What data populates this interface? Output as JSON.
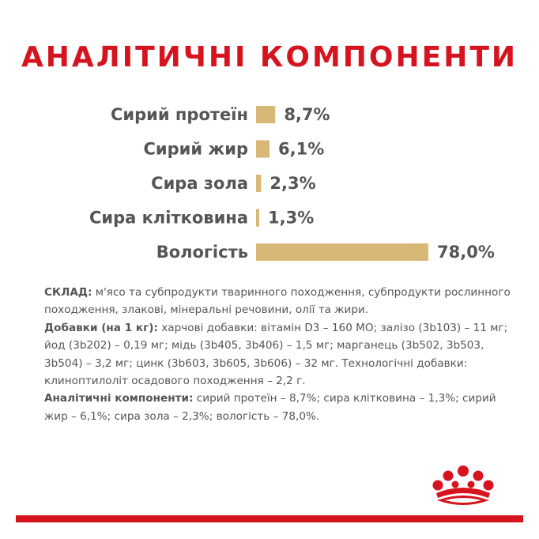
{
  "chart_data": {
    "type": "bar",
    "orientation": "horizontal",
    "title": "АНАЛІТИЧНІ КОМПОНЕНТИ",
    "categories": [
      "Сирий протеїн",
      "Сирий жир",
      "Сира зола",
      "Сира клітковина",
      "Вологість"
    ],
    "values": [
      8.7,
      6.1,
      2.3,
      1.3,
      78.0
    ],
    "value_labels": [
      "8,7%",
      "6,1%",
      "2,3%",
      "1,3%",
      "78,0%"
    ],
    "bar_color": "#d8b877"
  },
  "composition": {
    "sklad_label": "СКЛАД:",
    "sklad_text": " м'ясо та субпродукти тваринного походження, субпродукти рослинного походження, злакові, мінеральні речовини, олії та жири.",
    "additives_label": "Добавки (на 1 кг):",
    "additives_text": " харчові добавки: вітамін D3 – 160 МО; залізо (3b103) – 11 мг; йод (3b202) – 0,19 мг; мідь (3b405, 3b406) – 1,5 мг; марганець (3b502, 3b503, 3b504) – 3,2 мг; цинк (3b603, 3b605, 3b606) – 32 мг. Технологічні добавки: клиноптилоліт осадового походження – 2,2 г.",
    "analytic_label": "Аналітичні компоненти:",
    "analytic_text": " сирий протеїн – 8,7%; сира клітковина – 1,3%; сирий жир – 6,1%; сира зола – 2,3%; вологість – 78,0%."
  },
  "colors": {
    "brand_red": "#d6141f",
    "text_gray": "#555555"
  },
  "logo": "royal-canin-crown-icon"
}
